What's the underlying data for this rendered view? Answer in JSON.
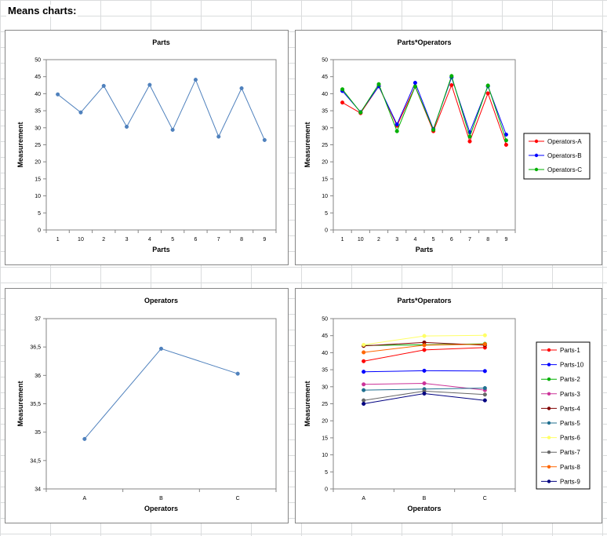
{
  "sheet": {
    "heading": "Means charts:"
  },
  "chart_data": [
    {
      "id": "parts",
      "type": "line",
      "title": "Parts",
      "xlabel": "Parts",
      "ylabel": "Measurement",
      "categories": [
        "1",
        "10",
        "2",
        "3",
        "4",
        "5",
        "6",
        "7",
        "8",
        "9"
      ],
      "ylim": [
        0,
        50
      ],
      "yticks": [
        "0",
        "5",
        "10",
        "15",
        "20",
        "25",
        "30",
        "35",
        "40",
        "45",
        "50"
      ],
      "series": [
        {
          "name": "Parts",
          "color": "#4f81bd",
          "values": [
            39.8,
            34.5,
            42.3,
            30.3,
            42.6,
            29.4,
            44.1,
            27.4,
            41.6,
            26.4
          ]
        }
      ]
    },
    {
      "id": "parts-operators",
      "type": "line",
      "title": "Parts*Operators",
      "xlabel": "Parts",
      "ylabel": "Measurement",
      "categories": [
        "1",
        "10",
        "2",
        "3",
        "4",
        "5",
        "6",
        "7",
        "8",
        "9"
      ],
      "ylim": [
        0,
        50
      ],
      "yticks": [
        "0",
        "5",
        "10",
        "15",
        "20",
        "25",
        "30",
        "35",
        "40",
        "45",
        "50"
      ],
      "series": [
        {
          "name": "Operators-A",
          "color": "#ff0000",
          "values": [
            37.4,
            34.3,
            42.2,
            30.6,
            42.1,
            29.0,
            42.5,
            26.0,
            40.1,
            25.0
          ]
        },
        {
          "name": "Operators-B",
          "color": "#0000ff",
          "values": [
            40.8,
            34.6,
            42.2,
            31.0,
            43.2,
            29.6,
            44.8,
            28.7,
            42.2,
            28.0
          ]
        },
        {
          "name": "Operators-C",
          "color": "#00b000",
          "values": [
            41.3,
            34.5,
            42.8,
            29.0,
            42.1,
            29.4,
            45.2,
            27.4,
            42.4,
            26.3
          ]
        }
      ],
      "legend": "right"
    },
    {
      "id": "operators",
      "type": "line",
      "title": "Operators",
      "xlabel": "Operators",
      "ylabel": "Measurement",
      "categories": [
        "A",
        "B",
        "C"
      ],
      "ylim": [
        34,
        37
      ],
      "yticks": [
        "34",
        "34,5",
        "35",
        "35,5",
        "36",
        "36,5",
        "37"
      ],
      "series": [
        {
          "name": "Operators",
          "color": "#4f81bd",
          "values": [
            34.88,
            36.47,
            36.03
          ]
        }
      ]
    },
    {
      "id": "parts-operators-2",
      "type": "line",
      "title": "Parts*Operators",
      "xlabel": "Operators",
      "ylabel": "Measurement",
      "categories": [
        "A",
        "B",
        "C"
      ],
      "ylim": [
        0,
        50
      ],
      "yticks": [
        "0",
        "5",
        "10",
        "15",
        "20",
        "25",
        "30",
        "35",
        "40",
        "45",
        "50"
      ],
      "series": [
        {
          "name": "Parts-1",
          "color": "#ff0000",
          "values": [
            37.5,
            40.8,
            41.5
          ]
        },
        {
          "name": "Parts-10",
          "color": "#0000ff",
          "values": [
            34.4,
            34.7,
            34.6
          ]
        },
        {
          "name": "Parts-2",
          "color": "#00b000",
          "values": [
            42.1,
            42.3,
            42.6
          ]
        },
        {
          "name": "Parts-3",
          "color": "#cc3399",
          "values": [
            30.7,
            31.0,
            29.0
          ]
        },
        {
          "name": "Parts-4",
          "color": "#800000",
          "values": [
            42.0,
            43.0,
            42.2
          ]
        },
        {
          "name": "Parts-5",
          "color": "#1f6f8f",
          "values": [
            29.0,
            29.3,
            29.6
          ]
        },
        {
          "name": "Parts-6",
          "color": "#ffff66",
          "values": [
            42.3,
            44.9,
            45.1
          ]
        },
        {
          "name": "Parts-7",
          "color": "#666666",
          "values": [
            26.0,
            28.7,
            27.7
          ]
        },
        {
          "name": "Parts-8",
          "color": "#ff6600",
          "values": [
            40.1,
            42.2,
            42.5
          ]
        },
        {
          "name": "Parts-9",
          "color": "#000080",
          "values": [
            25.0,
            28.0,
            26.0
          ]
        }
      ],
      "legend": "right"
    }
  ]
}
